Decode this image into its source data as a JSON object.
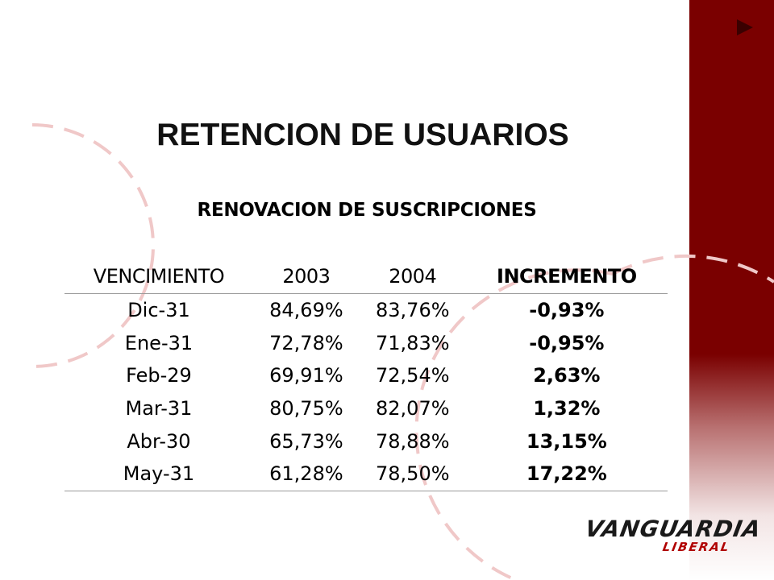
{
  "slide": {
    "title": "RETENCION DE USUARIOS",
    "subtitle": "RENOVACION DE SUSCRIPCIONES"
  },
  "table": {
    "headers": [
      "VENCIMIENTO",
      "2003",
      "2004",
      "INCREMENTO"
    ],
    "rows": [
      [
        "Dic-31",
        "84,69%",
        "83,76%",
        "-0,93%"
      ],
      [
        "Ene-31",
        "72,78%",
        "71,83%",
        "-0,95%"
      ],
      [
        "Feb-29",
        "69,91%",
        "72,54%",
        "2,63%"
      ],
      [
        "Mar-31",
        "80,75%",
        "82,07%",
        "1,32%"
      ],
      [
        "Abr-30",
        "65,73%",
        "78,88%",
        "13,15%"
      ],
      [
        "May-31",
        "61,28%",
        "78,50%",
        "17,22%"
      ]
    ]
  },
  "logo": {
    "name": "VANGUARDIA",
    "sub": "LIBERAL"
  },
  "icons": {
    "nav": "play-icon"
  },
  "colors": {
    "band": "#7a0000",
    "dashes": "#f0c8c8",
    "logo_red": "#b00000"
  }
}
